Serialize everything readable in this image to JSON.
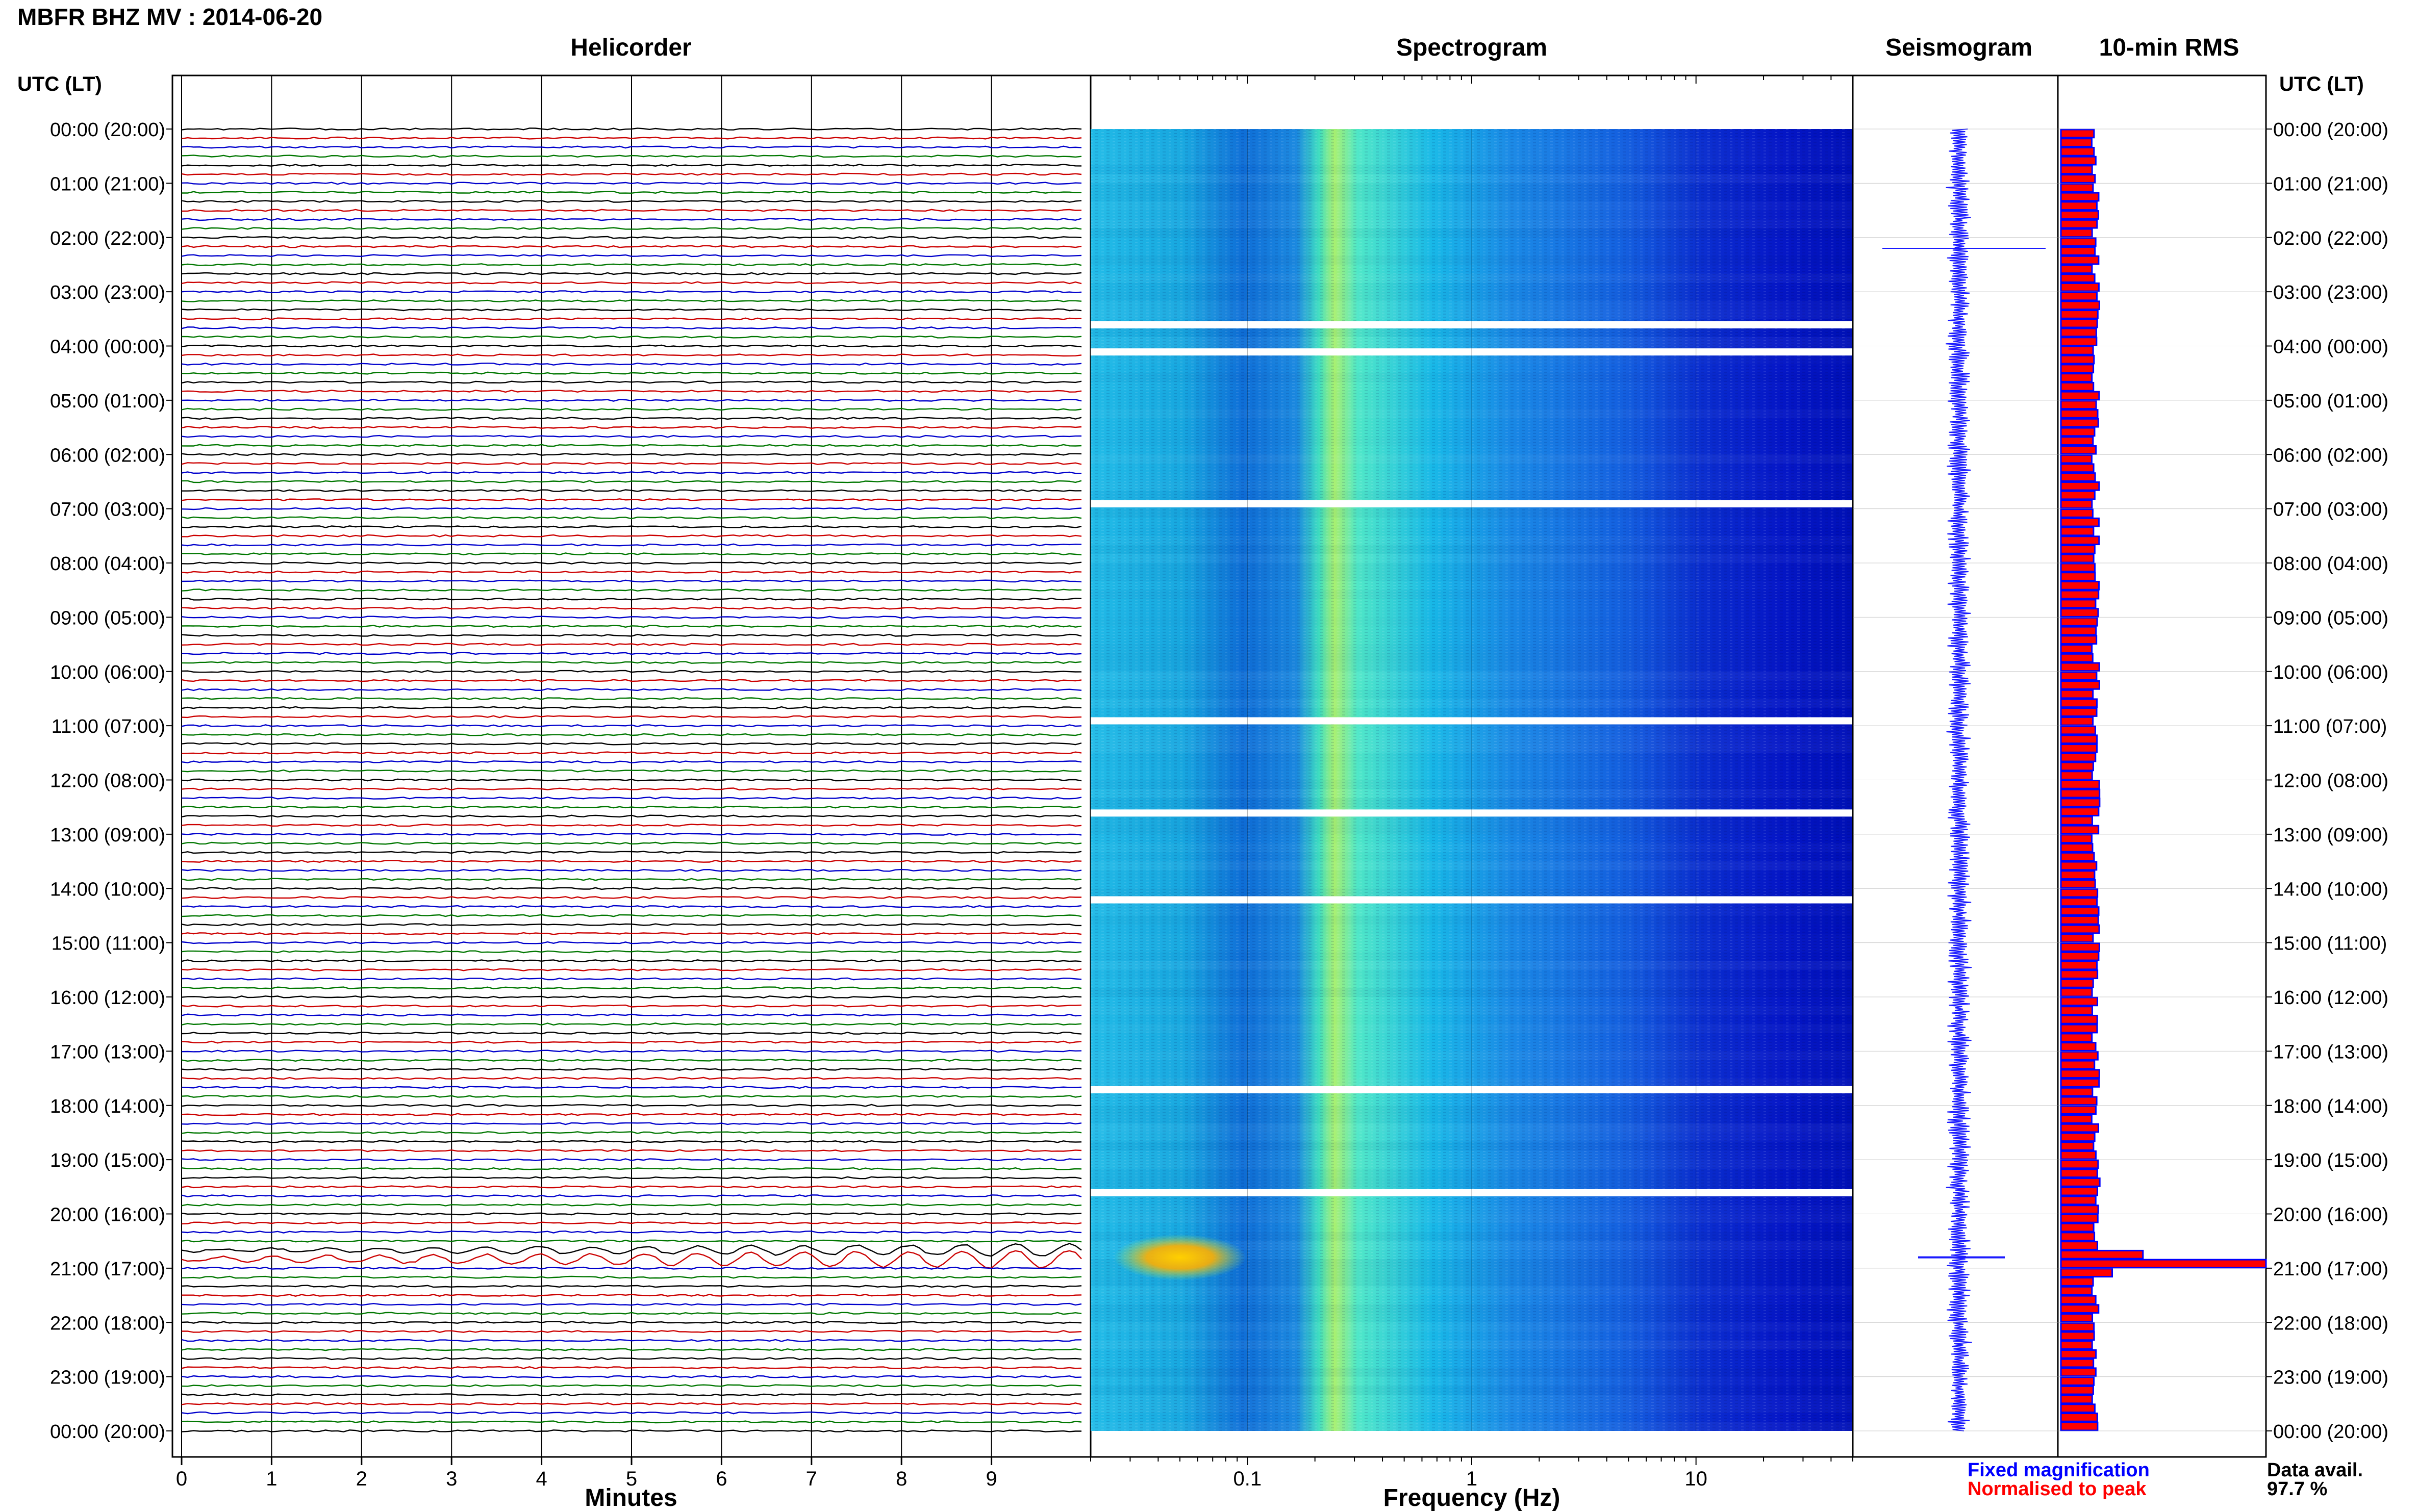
{
  "title": "MBFR BHZ MV : 2014-06-20",
  "panels": {
    "helicorder": "Helicorder",
    "spectrogram": "Spectrogram",
    "seismogram": "Seismogram",
    "rms": "10-min RMS"
  },
  "y_axis_label": "UTC (LT)",
  "colors": {
    "trace_cycle": [
      "#000000",
      "#cc0000",
      "#0000cc",
      "#007700"
    ],
    "seismogram": "#1a1aff",
    "rms_fill": "#ff0000",
    "rms_edge": "#0000ff",
    "spectrogram_colormap": "jet"
  },
  "legend": {
    "fixed": "Fixed magnification",
    "normalised": "Normalised to peak"
  },
  "data_availability": {
    "label": "Data avail.",
    "value": "97.7 %"
  },
  "chart_data": [
    {
      "type": "line",
      "name": "helicorder",
      "xlabel": "Minutes",
      "xticks": [
        "0",
        "1",
        "2",
        "3",
        "4",
        "5",
        "6",
        "7",
        "8",
        "9"
      ],
      "xlim": [
        0,
        10
      ],
      "rows_per_hour": 6,
      "total_rows": 144,
      "time_labels": [
        "00:00 (20:00)",
        "01:00 (21:00)",
        "02:00 (22:00)",
        "03:00 (23:00)",
        "04:00 (00:00)",
        "05:00 (01:00)",
        "06:00 (02:00)",
        "07:00 (03:00)",
        "08:00 (04:00)",
        "09:00 (05:00)",
        "10:00 (06:00)",
        "11:00 (07:00)",
        "12:00 (08:00)",
        "13:00 (09:00)",
        "14:00 (10:00)",
        "15:00 (11:00)",
        "16:00 (12:00)",
        "17:00 (13:00)",
        "18:00 (14:00)",
        "19:00 (15:00)",
        "20:00 (16:00)",
        "21:00 (17:00)",
        "22:00 (18:00)",
        "23:00 (19:00)",
        "00:00 (20:00)"
      ],
      "noteworthy_events": [
        {
          "time": "20:40",
          "description": "large long-period oscillations"
        },
        {
          "time": "20:50",
          "description": "large long-period oscillations"
        }
      ]
    },
    {
      "type": "heatmap",
      "name": "spectrogram",
      "xlabel": "Frequency (Hz)",
      "xscale": "log",
      "xlim": [
        0.02,
        50
      ],
      "xticks": [
        "0.1",
        "1",
        "10"
      ],
      "peak_band_hz": [
        0.15,
        0.3
      ],
      "data_gaps_hours": [
        3.6,
        4.1,
        6.9,
        10.9,
        12.6,
        14.2,
        17.7,
        19.6
      ]
    },
    {
      "type": "line",
      "name": "seismogram",
      "large_event_hour": 20.8
    },
    {
      "type": "bar",
      "name": "10-min RMS",
      "orientation": "horizontal",
      "baseline_level": 0.17,
      "values_note": "normalised to peak; peak at 20:50",
      "notable": [
        {
          "time": "20:40",
          "value": 0.4
        },
        {
          "time": "20:50",
          "value": 1.0
        },
        {
          "time": "21:00",
          "value": 0.25
        }
      ]
    }
  ]
}
